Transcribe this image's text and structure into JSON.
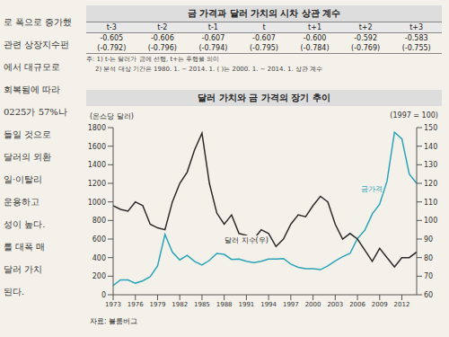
{
  "page_text": [
    "로 폭으로 증가했",
    "관련 상장지수펀",
    "에서 대규모로",
    "회복됨에 따라",
    "0225가 57%나",
    "들일 것으로",
    "달러의 외환",
    "일·이탈리",
    "운용하고",
    "성이 높다.",
    "를 대폭 매",
    "달러 가치",
    "된다."
  ],
  "table": {
    "title": "금 가격과 달러 가치의 시차 상관 계수",
    "columns": [
      "t-3",
      "t-2",
      "t-1",
      "t",
      "t+1",
      "t+2",
      "t+3"
    ],
    "rows": [
      [
        "-0.605",
        "-0.606",
        "-0.607",
        "-0.607",
        "-0.600",
        "-0.592",
        "-0.583"
      ],
      [
        "(-0.792)",
        "(-0.796)",
        "(-0.794)",
        "(-0.795)",
        "(-0.784)",
        "(-0.769)",
        "(-0.755)"
      ]
    ],
    "notes": [
      "주: 1) t-는 달러가 금에 선행, t+는 후행을 의미",
      "2) 분석 대상 기간은 1980. 1. ~ 2014. 1. ( )는 2000. 1. ~ 2014. 1. 상관 계수"
    ]
  },
  "chart_data": {
    "type": "line",
    "title": "달러 가치와 금 가격의 장기 추이",
    "ylabel": "(온스당 달러)",
    "y2label": "(1997 = 100)",
    "source": "자료: 블룸버그",
    "x": [
      1973,
      1974,
      1975,
      1976,
      1977,
      1978,
      1979,
      1980,
      1981,
      1982,
      1983,
      1984,
      1985,
      1986,
      1987,
      1988,
      1989,
      1990,
      1991,
      1992,
      1993,
      1994,
      1995,
      1996,
      1997,
      1998,
      1999,
      2000,
      2001,
      2002,
      2003,
      2004,
      2005,
      2006,
      2007,
      2008,
      2009,
      2010,
      2011,
      2012,
      2013,
      2014
    ],
    "xlim": [
      1973,
      2014
    ],
    "xticks": [
      1973,
      1976,
      1979,
      1982,
      1985,
      1988,
      1991,
      1994,
      1997,
      2000,
      2003,
      2006,
      2009,
      2012
    ],
    "ylim": [
      0,
      1800
    ],
    "yticks": [
      0,
      200,
      400,
      600,
      800,
      1000,
      1200,
      1400,
      1600,
      1800
    ],
    "y2lim": [
      60,
      150
    ],
    "y2ticks": [
      60,
      70,
      80,
      90,
      100,
      110,
      120,
      130,
      140,
      150
    ],
    "grid": false,
    "series": [
      {
        "name": "금가격",
        "color": "#2aa3b8",
        "values": [
          100,
          160,
          160,
          125,
          150,
          195,
          310,
          650,
          460,
          375,
          425,
          360,
          320,
          370,
          445,
          435,
          380,
          385,
          360,
          345,
          360,
          385,
          385,
          390,
          330,
          295,
          280,
          280,
          270,
          310,
          365,
          410,
          445,
          605,
          695,
          870,
          975,
          1225,
          1750,
          1680,
          1300,
          1200
        ]
      },
      {
        "name": "달러 지수(우)",
        "color": "#2b2b2b",
        "axis": "y2",
        "values": [
          108,
          106,
          105,
          110,
          108,
          98,
          96,
          95,
          110,
          120,
          126,
          138,
          147,
          120,
          104,
          98,
          103,
          93,
          92,
          90,
          95,
          93,
          86,
          90,
          98,
          103,
          102,
          108,
          113,
          110,
          98,
          90,
          93,
          90,
          84,
          78,
          85,
          80,
          75,
          80,
          80,
          83
        ]
      }
    ]
  }
}
